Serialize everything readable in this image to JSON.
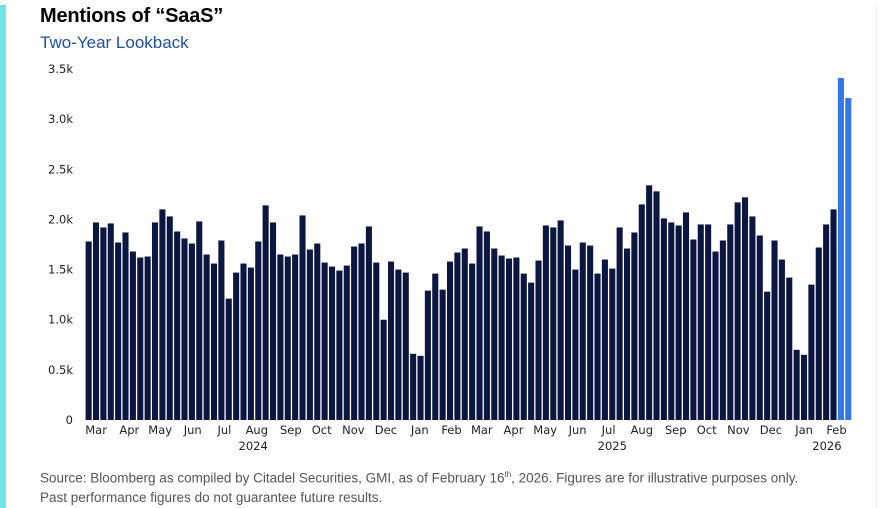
{
  "title": "Mentions of “SaaS”",
  "subtitle": "Two-Year Lookback",
  "colors": {
    "accent": "#6fe3e6",
    "bar": "#0c1640",
    "highlight": "#2f78e6",
    "subtitle": "#1f4ea8"
  },
  "footnote": {
    "line1_pre": "Source: Bloomberg as compiled by Citadel Securities, GMI, as of February 16",
    "line1_sup": "th",
    "line1_post": ", 2026. Figures are for illustrative purposes only.",
    "line2": "Past performance figures do not guarantee future results."
  },
  "chart_data": {
    "type": "bar",
    "title": "Mentions of “SaaS”",
    "subtitle": "Two-Year Lookback",
    "xlabel": "",
    "ylabel": "",
    "ylim": [
      0,
      3500
    ],
    "yticks": [
      0,
      500,
      1000,
      1500,
      2000,
      2500,
      3000,
      3500
    ],
    "ytick_labels": [
      "0",
      "0.5k",
      "1.0k",
      "1.5k",
      "2.0k",
      "2.5k",
      "3.0k",
      "3.5k"
    ],
    "grid": false,
    "frequency": "weekly",
    "month_ticks": [
      {
        "label": "Mar",
        "bar_index": 1
      },
      {
        "label": "Apr",
        "bar_index": 5.5
      },
      {
        "label": "May",
        "bar_index": 9.7
      },
      {
        "label": "Jun",
        "bar_index": 14.1
      },
      {
        "label": "Jul",
        "bar_index": 18.4
      },
      {
        "label": "Aug",
        "bar_index": 22.8
      },
      {
        "label": "Sep",
        "bar_index": 27.4
      },
      {
        "label": "Oct",
        "bar_index": 31.6
      },
      {
        "label": "Nov",
        "bar_index": 35.9
      },
      {
        "label": "Dec",
        "bar_index": 40.3
      },
      {
        "label": "Jan",
        "bar_index": 44.9
      },
      {
        "label": "Feb",
        "bar_index": 49.2
      },
      {
        "label": "Mar",
        "bar_index": 53.3
      },
      {
        "label": "Apr",
        "bar_index": 57.6
      },
      {
        "label": "May",
        "bar_index": 61.9
      },
      {
        "label": "Jun",
        "bar_index": 66.3
      },
      {
        "label": "Jul",
        "bar_index": 70.5
      },
      {
        "label": "Aug",
        "bar_index": 75
      },
      {
        "label": "Sep",
        "bar_index": 79.6
      },
      {
        "label": "Oct",
        "bar_index": 83.8
      },
      {
        "label": "Nov",
        "bar_index": 88.1
      },
      {
        "label": "Dec",
        "bar_index": 92.5
      },
      {
        "label": "Jan",
        "bar_index": 97
      },
      {
        "label": "Feb",
        "bar_index": 101.4
      }
    ],
    "year_ticks": [
      {
        "label": "2024",
        "bar_index": 22.3
      },
      {
        "label": "2025",
        "bar_index": 71
      },
      {
        "label": "2026",
        "bar_index": 100.1
      }
    ],
    "highlight_last": 2,
    "values": [
      1780,
      1970,
      1920,
      1960,
      1770,
      1870,
      1680,
      1620,
      1630,
      1970,
      2100,
      2030,
      1880,
      1810,
      1760,
      1980,
      1650,
      1560,
      1790,
      1210,
      1470,
      1560,
      1520,
      1780,
      2140,
      1970,
      1650,
      1630,
      1650,
      2040,
      1700,
      1760,
      1570,
      1530,
      1490,
      1540,
      1730,
      1760,
      1930,
      1570,
      1000,
      1580,
      1500,
      1470,
      660,
      640,
      1290,
      1460,
      1300,
      1580,
      1670,
      1710,
      1560,
      1930,
      1880,
      1710,
      1640,
      1610,
      1620,
      1460,
      1370,
      1590,
      1940,
      1920,
      1990,
      1740,
      1500,
      1770,
      1740,
      1460,
      1600,
      1510,
      1920,
      1710,
      1870,
      2150,
      2340,
      2280,
      2010,
      1970,
      1940,
      2070,
      1800,
      1950,
      1950,
      1680,
      1790,
      1950,
      2170,
      2220,
      2030,
      1840,
      1280,
      1790,
      1600,
      1420,
      700,
      650,
      1350,
      1720,
      1950,
      2100,
      3410,
      3210
    ]
  }
}
